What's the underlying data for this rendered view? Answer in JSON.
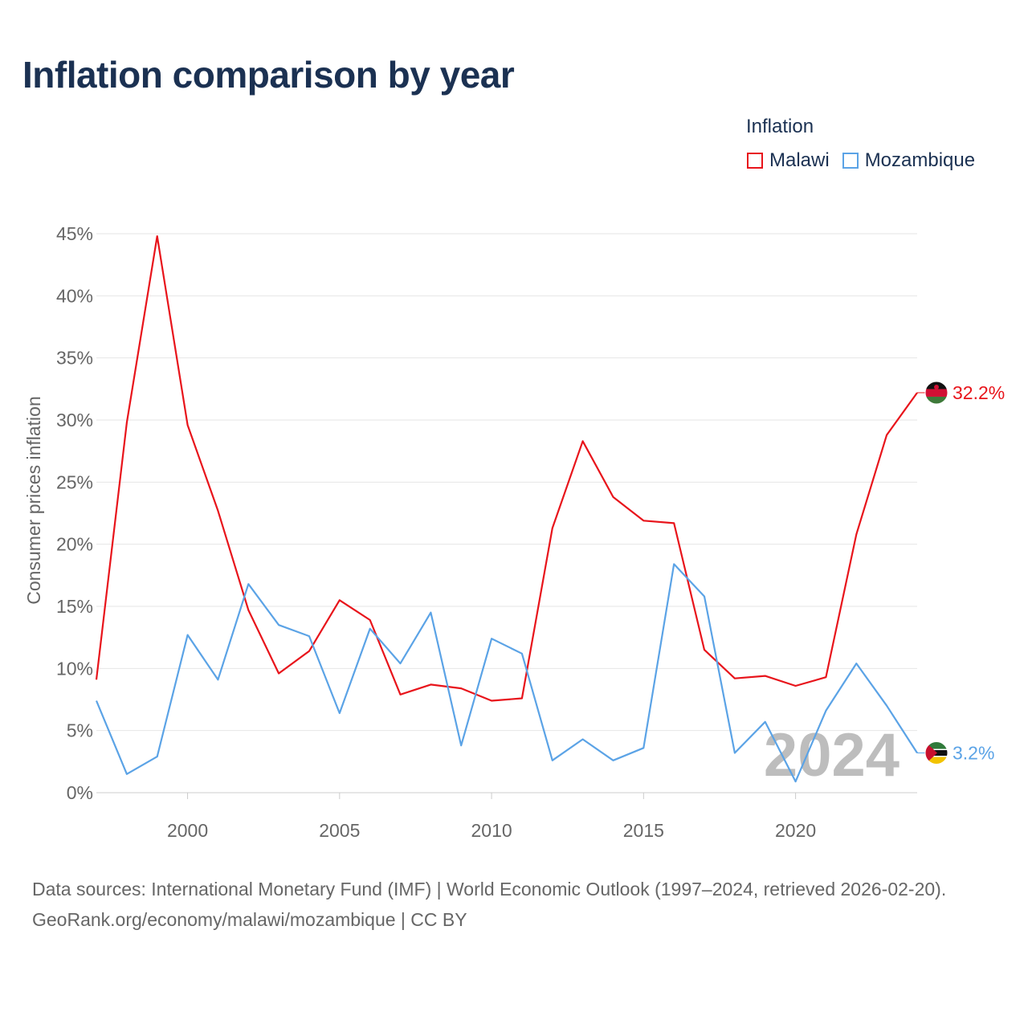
{
  "title": "Inflation comparison by year",
  "legend": {
    "title": "Inflation",
    "items": [
      {
        "label": "Malawi",
        "color": "#e8141b"
      },
      {
        "label": "Mozambique",
        "color": "#5ba3e6"
      }
    ]
  },
  "chart_data": {
    "type": "line",
    "title": "Inflation comparison by year",
    "xlabel": "",
    "ylabel": "Consumer prices inflation",
    "x": [
      1997,
      1998,
      1999,
      2000,
      2001,
      2002,
      2003,
      2004,
      2005,
      2006,
      2007,
      2008,
      2009,
      2010,
      2011,
      2012,
      2013,
      2014,
      2015,
      2016,
      2017,
      2018,
      2019,
      2020,
      2021,
      2022,
      2023,
      2024
    ],
    "xlim": [
      1997,
      2024
    ],
    "ylim": [
      0,
      45
    ],
    "yticks": [
      0,
      5,
      10,
      15,
      20,
      25,
      30,
      35,
      40,
      45
    ],
    "ytick_labels": [
      "0%",
      "5%",
      "10%",
      "15%",
      "20%",
      "25%",
      "30%",
      "35%",
      "40%",
      "45%"
    ],
    "xticks": [
      2000,
      2005,
      2010,
      2015,
      2020
    ],
    "xtick_labels": [
      "2000",
      "2005",
      "2010",
      "2015",
      "2020"
    ],
    "grid": true,
    "watermark": "2024",
    "series": [
      {
        "name": "Malawi",
        "color": "#e8141b",
        "end_label": "32.2%",
        "values": [
          9.1,
          29.8,
          44.8,
          29.6,
          22.7,
          14.7,
          9.6,
          11.4,
          15.5,
          13.9,
          7.9,
          8.7,
          8.4,
          7.4,
          7.6,
          21.3,
          28.3,
          23.8,
          21.9,
          21.7,
          11.5,
          9.2,
          9.4,
          8.6,
          9.3,
          20.8,
          28.8,
          32.2
        ]
      },
      {
        "name": "Mozambique",
        "color": "#5ba3e6",
        "end_label": "3.2%",
        "values": [
          7.4,
          1.5,
          2.9,
          12.7,
          9.1,
          16.8,
          13.5,
          12.6,
          6.4,
          13.2,
          10.4,
          14.5,
          3.8,
          12.4,
          11.2,
          2.6,
          4.3,
          2.6,
          3.6,
          18.4,
          15.8,
          3.2,
          5.7,
          0.9,
          6.6,
          10.4,
          7.0,
          3.2
        ]
      }
    ]
  },
  "footer": {
    "sources": "Data sources: International Monetary Fund (IMF) | World Economic Outlook (1997–2024, retrieved 2026-02-20).",
    "link": "GeoRank.org/economy/malawi/mozambique | CC BY"
  }
}
